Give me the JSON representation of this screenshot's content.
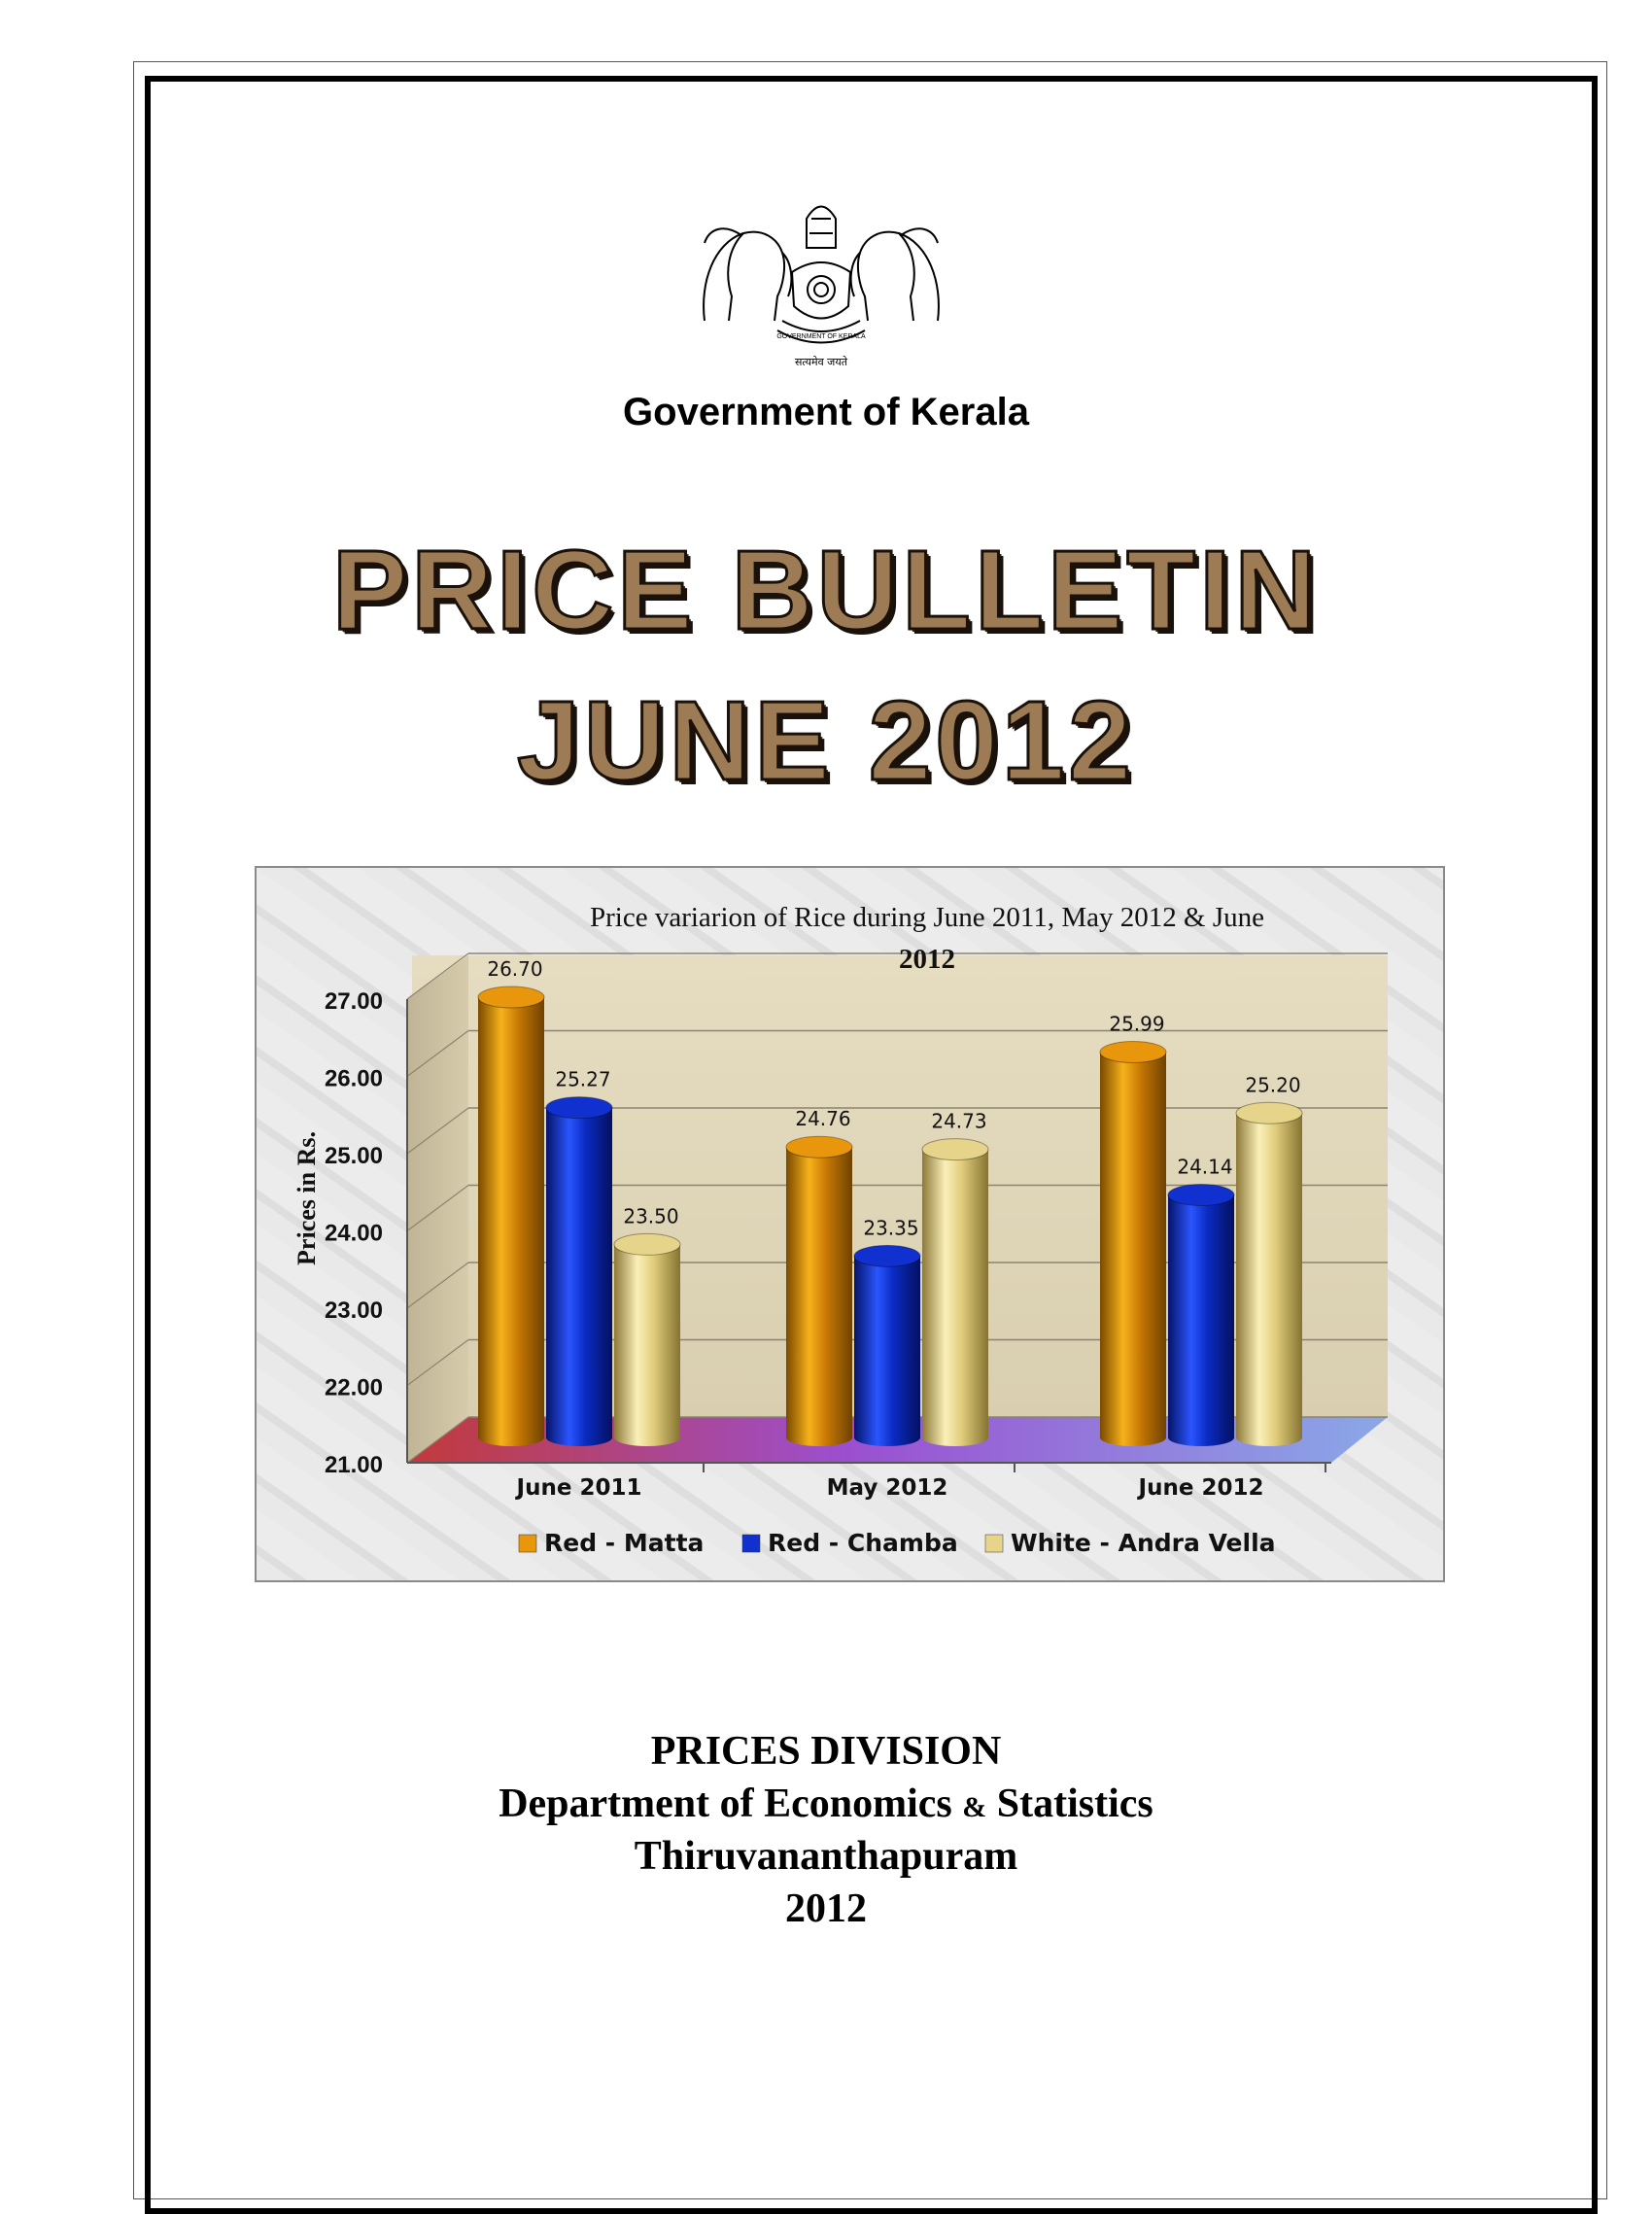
{
  "header": {
    "government": "Government of Kerala",
    "emblem_motto": "सत्यमेव जयते",
    "emblem_ribbon": "GOVERNMENT OF KERALA"
  },
  "title": {
    "line1": "PRICE BULLETIN",
    "line2": "JUNE 2012"
  },
  "chart_data": {
    "type": "bar",
    "title": "Price variarion of Rice during June 2011, May 2012 & June 2012",
    "title_lines": [
      "Price variarion of Rice during June 2011, May 2012 & June",
      "2012"
    ],
    "ylabel": "Prices in Rs.",
    "xlabel": "",
    "ylim": [
      21.0,
      27.0
    ],
    "yticks": [
      "27.00",
      "26.00",
      "25.00",
      "24.00",
      "23.00",
      "22.00",
      "21.00"
    ],
    "categories": [
      "June 2011",
      "May 2012",
      "June 2012"
    ],
    "series": [
      {
        "name": "Red - Matta",
        "values": [
          26.7,
          24.76,
          25.99
        ],
        "labels": [
          "26.70",
          "24.76",
          "25.99"
        ],
        "color": "#e8960c"
      },
      {
        "name": "Red - Chamba",
        "values": [
          25.27,
          23.35,
          24.14
        ],
        "labels": [
          "25.27",
          "23.35",
          "24.14"
        ],
        "color": "#1030d0"
      },
      {
        "name": "White - Andra Vella",
        "values": [
          23.5,
          24.73,
          25.2
        ],
        "labels": [
          "23.50",
          "24.73",
          "25.20"
        ],
        "color": "#e6d48a"
      }
    ],
    "grid": true,
    "legend_position": "bottom"
  },
  "footer": {
    "division": "PRICES DIVISION",
    "department_a": "Department of Economics ",
    "department_amp": "&",
    "department_b": " Statistics",
    "city": "Thiruvananthapuram",
    "year": "2012"
  }
}
